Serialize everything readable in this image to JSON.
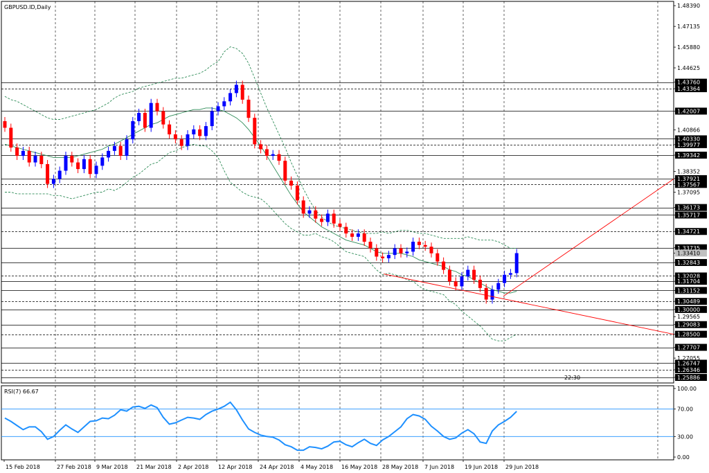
{
  "title": "GBPUSD.ID,Daily",
  "chart_data": [
    {
      "type": "candlestick",
      "symbol": "GBPUSD.ID",
      "timeframe": "Daily",
      "ylim": [
        1.2555,
        1.4865
      ],
      "price_scale_labels": [
        "1.48390",
        "1.47135",
        "1.45880",
        "1.44625",
        "1.43760",
        "1.43364",
        "1.42007",
        "1.40866",
        "1.40330",
        "1.39977",
        "1.39342",
        "1.38352",
        "1.37921",
        "1.37567",
        "1.37095",
        "1.36173",
        "1.35717",
        "1.34721",
        "1.33735",
        "1.33410",
        "1.32843",
        "1.32028",
        "1.31704",
        "1.31152",
        "1.30489",
        "1.30000",
        "1.29565",
        "1.29083",
        "1.28500",
        "1.27707",
        "1.27055",
        "1.26747",
        "1.26346",
        "1.25886"
      ],
      "x_tick_labels": [
        "15 Feb 2018",
        "27 Feb 2018",
        "9 Mar 2018",
        "21 Mar 2018",
        "2 Apr 2018",
        "12 Apr 2018",
        "24 Apr 2018",
        "4 May 2018",
        "16 May 2018",
        "28 May 2018",
        "7 Jun 2018",
        "19 Jun 2018",
        "29 Jun 2018"
      ],
      "horizontal_levels": [
        1.4376,
        1.43364,
        1.42007,
        1.4033,
        1.39977,
        1.39342,
        1.37921,
        1.37567,
        1.36173,
        1.35717,
        1.34721,
        1.33735,
        1.32843,
        1.32028,
        1.31704,
        1.31152,
        1.30489,
        1.3,
        1.29083,
        1.285,
        1.27707,
        1.26747,
        1.26346,
        1.25886
      ],
      "current_price": "1.33410",
      "timer_label": "22:30",
      "candles_close": [
        1.41,
        1.398,
        1.393,
        1.396,
        1.389,
        1.393,
        1.388,
        1.376,
        1.379,
        1.384,
        1.393,
        1.389,
        1.385,
        1.391,
        1.382,
        1.387,
        1.392,
        1.396,
        1.399,
        1.393,
        1.403,
        1.414,
        1.419,
        1.41,
        1.425,
        1.42,
        1.412,
        1.406,
        1.403,
        1.399,
        1.406,
        1.409,
        1.405,
        1.411,
        1.42,
        1.423,
        1.426,
        1.431,
        1.436,
        1.427,
        1.416,
        1.4,
        1.397,
        1.393,
        1.394,
        1.39,
        1.378,
        1.375,
        1.366,
        1.358,
        1.36,
        1.355,
        1.353,
        1.358,
        1.352,
        1.35,
        1.346,
        1.344,
        1.346,
        1.341,
        1.337,
        1.332,
        1.331,
        1.333,
        1.337,
        1.334,
        1.335,
        1.341,
        1.339,
        1.338,
        1.334,
        1.329,
        1.324,
        1.317,
        1.314,
        1.32,
        1.324,
        1.318,
        1.313,
        1.306,
        1.312,
        1.316,
        1.321,
        1.322,
        1.3341
      ],
      "upper_band": [
        1.429,
        1.427,
        1.426,
        1.424,
        1.422,
        1.42,
        1.418,
        1.416,
        1.415,
        1.415,
        1.416,
        1.417,
        1.418,
        1.419,
        1.42,
        1.421,
        1.423,
        1.425,
        1.428,
        1.43,
        1.431,
        1.432,
        1.434,
        1.435,
        1.436,
        1.437,
        1.438,
        1.439,
        1.44,
        1.44,
        1.441,
        1.442,
        1.443,
        1.445,
        1.448,
        1.45,
        1.456,
        1.459,
        1.458,
        1.455,
        1.449,
        1.44,
        1.431,
        1.422,
        1.414,
        1.406,
        1.398,
        1.389,
        1.381,
        1.373,
        1.366,
        1.36,
        1.356,
        1.353,
        1.351,
        1.35,
        1.349,
        1.348,
        1.347,
        1.346,
        1.346,
        1.346,
        1.347,
        1.346,
        1.347,
        1.348,
        1.348,
        1.347,
        1.346,
        1.346,
        1.345,
        1.344,
        1.343,
        1.343,
        1.343,
        1.343,
        1.344,
        1.343,
        1.342,
        1.342,
        1.342,
        1.341,
        1.339,
        1.337,
        1.337
      ],
      "middle_band": [
        1.4,
        1.399,
        1.398,
        1.397,
        1.396,
        1.395,
        1.394,
        1.393,
        1.392,
        1.392,
        1.392,
        1.392,
        1.393,
        1.394,
        1.395,
        1.396,
        1.397,
        1.399,
        1.4,
        1.402,
        1.404,
        1.406,
        1.408,
        1.41,
        1.412,
        1.413,
        1.415,
        1.417,
        1.418,
        1.419,
        1.42,
        1.421,
        1.421,
        1.422,
        1.422,
        1.421,
        1.42,
        1.418,
        1.416,
        1.413,
        1.409,
        1.404,
        1.399,
        1.393,
        1.387,
        1.381,
        1.375,
        1.369,
        1.364,
        1.359,
        1.356,
        1.353,
        1.35,
        1.348,
        1.346,
        1.344,
        1.342,
        1.341,
        1.34,
        1.339,
        1.337,
        1.335,
        1.334,
        1.334,
        1.334,
        1.334,
        1.333,
        1.332,
        1.33,
        1.329,
        1.328,
        1.327,
        1.326,
        1.324,
        1.323,
        1.321,
        1.32,
        1.318,
        1.316,
        1.314,
        1.312,
        1.311,
        1.31,
        1.31,
        1.311
      ],
      "lower_band": [
        1.371,
        1.371,
        1.37,
        1.37,
        1.37,
        1.37,
        1.37,
        1.37,
        1.369,
        1.369,
        1.368,
        1.367,
        1.368,
        1.369,
        1.37,
        1.371,
        1.371,
        1.373,
        1.372,
        1.374,
        1.377,
        1.38,
        1.382,
        1.385,
        1.388,
        1.389,
        1.392,
        1.395,
        1.396,
        1.398,
        1.399,
        1.4,
        1.399,
        1.399,
        1.396,
        1.392,
        1.384,
        1.377,
        1.374,
        1.371,
        1.369,
        1.368,
        1.367,
        1.364,
        1.36,
        1.356,
        1.352,
        1.349,
        1.347,
        1.345,
        1.345,
        1.346,
        1.344,
        1.343,
        1.341,
        1.338,
        1.335,
        1.334,
        1.333,
        1.332,
        1.328,
        1.324,
        1.321,
        1.322,
        1.321,
        1.32,
        1.318,
        1.317,
        1.314,
        1.312,
        1.311,
        1.31,
        1.309,
        1.305,
        1.303,
        1.299,
        1.296,
        1.293,
        1.29,
        1.286,
        1.282,
        1.281,
        1.281,
        1.283,
        1.285
      ],
      "trendlines": [
        {
          "from": [
            "28 May 2018",
            1.3215
          ],
          "to_edge": 1.285,
          "color": "#ff0000"
        },
        {
          "from": [
            "29 Jun 2018",
            1.308
          ],
          "to_edge": 1.379,
          "color": "#ff0000"
        }
      ]
    },
    {
      "type": "line",
      "name": "RSI(7) 66.67",
      "ylim": [
        0,
        100
      ],
      "y_tick_labels": [
        "100.00",
        "70.00",
        "30.00",
        "0.00"
      ],
      "levels": [
        70,
        30
      ],
      "values": [
        57,
        52,
        46,
        40,
        44,
        44,
        37,
        26,
        30,
        39,
        47,
        41,
        36,
        44,
        52,
        53,
        57,
        56,
        61,
        69,
        67,
        73,
        74,
        71,
        76,
        72,
        58,
        48,
        50,
        54,
        58,
        57,
        55,
        62,
        67,
        70,
        74,
        80,
        69,
        54,
        41,
        36,
        32,
        30,
        29,
        25,
        18,
        15,
        10,
        10,
        15,
        14,
        12,
        16,
        22,
        23,
        18,
        15,
        21,
        26,
        20,
        17,
        25,
        30,
        37,
        44,
        56,
        62,
        60,
        55,
        45,
        38,
        30,
        26,
        28,
        35,
        40,
        34,
        22,
        20,
        38,
        47,
        52,
        58,
        66.67
      ],
      "color": "#1e90ff"
    }
  ]
}
